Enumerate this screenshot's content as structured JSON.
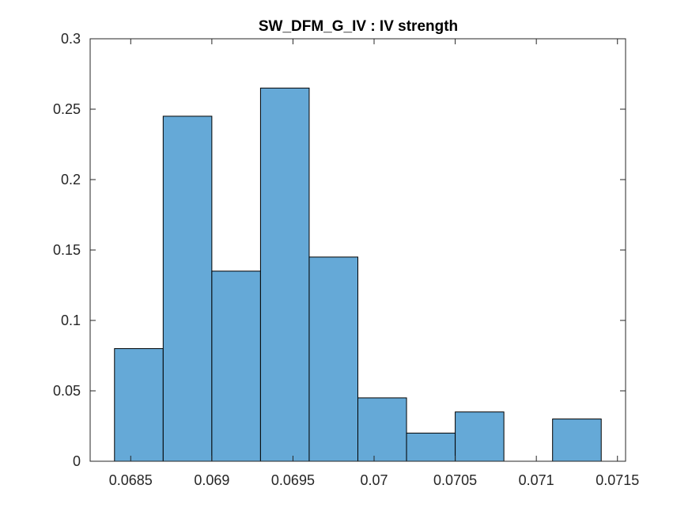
{
  "chart_data": {
    "type": "bar",
    "title": "SW_DFM_G_IV : IV strength",
    "xlabel": "",
    "ylabel": "",
    "bin_edges": [
      0.0684,
      0.0687,
      0.069,
      0.0693,
      0.0696,
      0.0699,
      0.0702,
      0.0705,
      0.0708,
      0.0711,
      0.0714
    ],
    "values": [
      0.08,
      0.245,
      0.135,
      0.265,
      0.145,
      0.045,
      0.02,
      0.035,
      0.0,
      0.03
    ],
    "xlim": [
      0.06825,
      0.07155
    ],
    "ylim": [
      0,
      0.3
    ],
    "xticks": [
      0.0685,
      0.069,
      0.0695,
      0.07,
      0.0705,
      0.071,
      0.0715
    ],
    "xtick_labels": [
      "0.0685",
      "0.069",
      "0.0695",
      "0.07",
      "0.0705",
      "0.071",
      "0.0715"
    ],
    "yticks": [
      0,
      0.05,
      0.1,
      0.15,
      0.2,
      0.25,
      0.3
    ],
    "ytick_labels": [
      "0",
      "0.05",
      "0.1",
      "0.15",
      "0.2",
      "0.25",
      "0.3"
    ],
    "bar_color": "#65a9d7",
    "edge_color": "#000000",
    "grid": false,
    "legend": "none"
  }
}
